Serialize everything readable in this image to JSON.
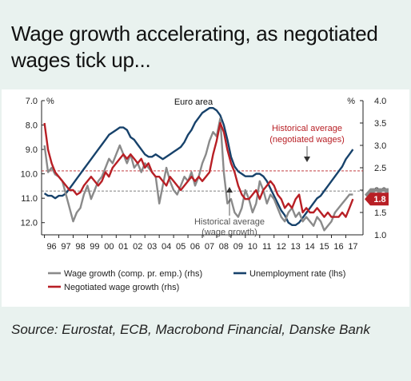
{
  "title": "Wage growth accelerating, as negotiated wages tick up...",
  "source": "Source: Eurostat, ECB, Macrobond Financial, Danske Bank",
  "chart_data": {
    "type": "line",
    "title": "Euro area",
    "x_ticks": [
      "96",
      "97",
      "98",
      "99",
      "00",
      "01",
      "02",
      "03",
      "04",
      "05",
      "06",
      "07",
      "08",
      "09",
      "10",
      "11",
      "12",
      "13",
      "14",
      "15",
      "16",
      "17"
    ],
    "y_left": {
      "label": "%",
      "inverted": true,
      "min": 7.0,
      "max": 12.5,
      "ticks": [
        "7.0",
        "8.0",
        "9.0",
        "10.0",
        "11.0",
        "12.0"
      ]
    },
    "y_right": {
      "label": "%",
      "min": 1.0,
      "max": 4.0,
      "ticks": [
        "1.0",
        "1.5",
        "2.0",
        "2.5",
        "3.0",
        "3.5",
        "4.0"
      ]
    },
    "colors": {
      "wage_growth": "#8a8a8a",
      "unemployment": "#17426b",
      "negotiated": "#b81f25"
    },
    "series": [
      {
        "name": "Wage growth (comp. pr. emp.) (rhs)",
        "axis": "right",
        "x": [
          1996.0,
          1996.25,
          1996.5,
          1996.75,
          1997.0,
          1997.25,
          1997.5,
          1997.75,
          1998.0,
          1998.25,
          1998.5,
          1998.75,
          1999.0,
          1999.25,
          1999.5,
          1999.75,
          2000.0,
          2000.25,
          2000.5,
          2000.75,
          2001.0,
          2001.25,
          2001.5,
          2001.75,
          2002.0,
          2002.25,
          2002.5,
          2002.75,
          2003.0,
          2003.25,
          2003.5,
          2003.75,
          2004.0,
          2004.25,
          2004.5,
          2004.75,
          2005.0,
          2005.25,
          2005.5,
          2005.75,
          2006.0,
          2006.25,
          2006.5,
          2006.75,
          2007.0,
          2007.25,
          2007.5,
          2007.75,
          2008.0,
          2008.25,
          2008.5,
          2008.75,
          2009.0,
          2009.25,
          2009.5,
          2009.75,
          2010.0,
          2010.25,
          2010.5,
          2010.75,
          2011.0,
          2011.25,
          2011.5,
          2011.75,
          2012.0,
          2012.25,
          2012.5,
          2012.75,
          2013.0,
          2013.25,
          2013.5,
          2013.75,
          2014.0,
          2014.25,
          2014.5,
          2014.75,
          2015.0,
          2015.25,
          2015.5,
          2015.75,
          2016.0,
          2016.25,
          2016.5,
          2016.75,
          2017.0,
          2017.25,
          2017.5
        ],
        "y": [
          3.0,
          2.4,
          2.5,
          2.35,
          2.3,
          2.2,
          1.9,
          1.6,
          1.3,
          1.5,
          1.6,
          1.9,
          2.1,
          1.8,
          2.0,
          2.2,
          2.3,
          2.5,
          2.7,
          2.6,
          2.8,
          3.0,
          2.8,
          2.6,
          2.8,
          2.5,
          2.6,
          2.4,
          2.6,
          2.5,
          2.4,
          2.3,
          1.7,
          2.1,
          2.5,
          2.2,
          2.0,
          1.9,
          2.1,
          2.3,
          2.2,
          2.4,
          2.1,
          2.3,
          2.6,
          2.8,
          3.1,
          3.3,
          3.2,
          3.6,
          2.4,
          1.7,
          1.8,
          1.5,
          1.4,
          1.6,
          2.0,
          1.8,
          1.5,
          1.7,
          2.2,
          2.0,
          1.7,
          1.9,
          1.8,
          1.6,
          1.4,
          1.3,
          1.5,
          1.6,
          1.4,
          1.5,
          1.3,
          1.4,
          1.3,
          1.2,
          1.4,
          1.3,
          1.1,
          1.2,
          1.3,
          1.5,
          1.6,
          1.7,
          1.8,
          1.9,
          1.9
        ]
      },
      {
        "name": "Unemployment rate (lhs)",
        "axis": "left",
        "x": [
          1996.0,
          1996.25,
          1996.5,
          1996.75,
          1997.0,
          1997.25,
          1997.5,
          1997.75,
          1998.0,
          1998.25,
          1998.5,
          1998.75,
          1999.0,
          1999.25,
          1999.5,
          1999.75,
          2000.0,
          2000.25,
          2000.5,
          2000.75,
          2001.0,
          2001.25,
          2001.5,
          2001.75,
          2002.0,
          2002.25,
          2002.5,
          2002.75,
          2003.0,
          2003.25,
          2003.5,
          2003.75,
          2004.0,
          2004.25,
          2004.5,
          2004.75,
          2005.0,
          2005.25,
          2005.5,
          2005.75,
          2006.0,
          2006.25,
          2006.5,
          2006.75,
          2007.0,
          2007.25,
          2007.5,
          2007.75,
          2008.0,
          2008.25,
          2008.5,
          2008.75,
          2009.0,
          2009.25,
          2009.5,
          2009.75,
          2010.0,
          2010.25,
          2010.5,
          2010.75,
          2011.0,
          2011.25,
          2011.5,
          2011.75,
          2012.0,
          2012.25,
          2012.5,
          2012.75,
          2013.0,
          2013.25,
          2013.5,
          2013.75,
          2014.0,
          2014.25,
          2014.5,
          2014.75,
          2015.0,
          2015.25,
          2015.5,
          2015.75,
          2016.0,
          2016.25,
          2016.5,
          2016.75,
          2017.0,
          2017.25,
          2017.5
        ],
        "y": [
          10.8,
          10.9,
          10.9,
          11.0,
          10.9,
          10.9,
          10.8,
          10.6,
          10.4,
          10.2,
          10.0,
          9.8,
          9.6,
          9.4,
          9.2,
          9.0,
          8.8,
          8.6,
          8.4,
          8.3,
          8.2,
          8.1,
          8.1,
          8.2,
          8.5,
          8.6,
          8.8,
          9.0,
          9.2,
          9.3,
          9.3,
          9.2,
          9.3,
          9.4,
          9.3,
          9.2,
          9.1,
          9.0,
          8.9,
          8.7,
          8.4,
          8.2,
          7.9,
          7.7,
          7.5,
          7.4,
          7.3,
          7.3,
          7.4,
          7.6,
          8.0,
          8.6,
          9.3,
          9.7,
          9.9,
          10.0,
          10.1,
          10.1,
          10.1,
          10.0,
          10.0,
          10.1,
          10.3,
          10.6,
          10.9,
          11.2,
          11.5,
          11.7,
          12.0,
          12.1,
          12.1,
          12.0,
          11.8,
          11.6,
          11.4,
          11.2,
          11.0,
          10.9,
          10.7,
          10.5,
          10.3,
          10.1,
          9.9,
          9.7,
          9.4,
          9.2,
          9.0
        ]
      },
      {
        "name": "Negotiated wage growth (rhs)",
        "axis": "right",
        "x": [
          1996.0,
          1996.25,
          1996.5,
          1996.75,
          1997.0,
          1997.25,
          1997.5,
          1997.75,
          1998.0,
          1998.25,
          1998.5,
          1998.75,
          1999.0,
          1999.25,
          1999.5,
          1999.75,
          2000.0,
          2000.25,
          2000.5,
          2000.75,
          2001.0,
          2001.25,
          2001.5,
          2001.75,
          2002.0,
          2002.25,
          2002.5,
          2002.75,
          2003.0,
          2003.25,
          2003.5,
          2003.75,
          2004.0,
          2004.25,
          2004.5,
          2004.75,
          2005.0,
          2005.25,
          2005.5,
          2005.75,
          2006.0,
          2006.25,
          2006.5,
          2006.75,
          2007.0,
          2007.25,
          2007.5,
          2007.75,
          2008.0,
          2008.25,
          2008.5,
          2008.75,
          2009.0,
          2009.25,
          2009.5,
          2009.75,
          2010.0,
          2010.25,
          2010.5,
          2010.75,
          2011.0,
          2011.25,
          2011.5,
          2011.75,
          2012.0,
          2012.25,
          2012.5,
          2012.75,
          2013.0,
          2013.25,
          2013.5,
          2013.75,
          2014.0,
          2014.25,
          2014.5,
          2014.75,
          2015.0,
          2015.25,
          2015.5,
          2015.75,
          2016.0,
          2016.25,
          2016.5,
          2016.75,
          2017.0,
          2017.25,
          2017.5
        ],
        "y": [
          3.5,
          2.9,
          2.6,
          2.4,
          2.3,
          2.2,
          2.1,
          2.0,
          2.0,
          1.9,
          1.95,
          2.1,
          2.2,
          2.3,
          2.2,
          2.1,
          2.2,
          2.4,
          2.3,
          2.5,
          2.6,
          2.7,
          2.8,
          2.7,
          2.8,
          2.7,
          2.6,
          2.7,
          2.5,
          2.6,
          2.4,
          2.3,
          2.3,
          2.2,
          2.1,
          2.3,
          2.2,
          2.1,
          2.0,
          2.1,
          2.2,
          2.3,
          2.2,
          2.3,
          2.2,
          2.3,
          2.4,
          2.8,
          3.1,
          3.5,
          3.3,
          2.9,
          2.6,
          2.4,
          2.1,
          1.9,
          1.8,
          1.8,
          1.9,
          2.0,
          1.8,
          2.0,
          2.1,
          2.2,
          2.1,
          1.9,
          1.8,
          1.6,
          1.7,
          1.6,
          1.8,
          1.9,
          1.5,
          1.6,
          1.5,
          1.5,
          1.6,
          1.5,
          1.4,
          1.5,
          1.4,
          1.4,
          1.4,
          1.5,
          1.4,
          1.6,
          1.8
        ]
      }
    ],
    "end_labels": [
      {
        "series": "Wage growth (comp. pr. emp.) (rhs)",
        "text": "1.9",
        "value": 1.9
      },
      {
        "series": "Negotiated wage growth (rhs)",
        "text": "1.8",
        "value": 1.8
      }
    ],
    "reference_lines": [
      {
        "axis": "right",
        "value": 2.43,
        "color": "#b81f25",
        "style": "dashed"
      },
      {
        "axis": "right",
        "value": 1.98,
        "color": "#555555",
        "style": "dashed"
      }
    ],
    "annotations": [
      {
        "text": "Historical average",
        "text2": "(negotiated wages)",
        "color": "#b81f25"
      },
      {
        "text": "Historical average",
        "text2": "(wage growth)",
        "color": "#555555"
      }
    ],
    "legend_position": "bottom",
    "grid": false
  }
}
